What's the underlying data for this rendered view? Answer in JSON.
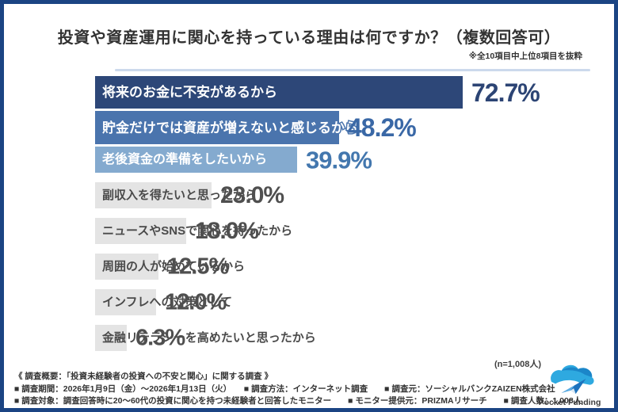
{
  "header": {
    "title": "投資や資産運用に関心を持っている理由は何ですか？（複数回答可）",
    "note": "※全10項目中上位8項目を抜粋"
  },
  "chart_data": {
    "type": "bar",
    "orientation": "horizontal",
    "unit": "%",
    "title": "投資や資産運用に関心を持っている理由は何ですか？（複数回答可）",
    "xlim": [
      0,
      100
    ],
    "grid": false,
    "legend": "none",
    "categories": [
      "将来のお金に不安があるから",
      "貯金だけでは資産が増えないと感じるから",
      "老後資金の準備をしたいから",
      "副収入を得たいと思ったから",
      "ニュースやSNSで関心を持ったから",
      "周囲の人が始めているから",
      "インフレへの対策として",
      "金融リテラシーを高めたいと思ったから"
    ],
    "values": [
      72.7,
      48.2,
      39.9,
      23.0,
      18.0,
      12.5,
      12.0,
      6.3
    ],
    "items": [
      {
        "label": "将来のお金に不安があるから",
        "value": 72.7,
        "display": "72.7%",
        "style": "navy"
      },
      {
        "label": "貯金だけでは資産が増えないと感じるから",
        "value": 48.2,
        "display": "48.2%",
        "style": "blue"
      },
      {
        "label": "老後資金の準備をしたいから",
        "value": 39.9,
        "display": "39.9%",
        "style": "lightblue"
      },
      {
        "label": "副収入を得たいと思ったから",
        "value": 23.0,
        "display": "23.0%",
        "style": "gray"
      },
      {
        "label": "ニュースやSNSで関心を持ったから",
        "value": 18.0,
        "display": "18.0%",
        "style": "gray"
      },
      {
        "label": "周囲の人が始めているから",
        "value": 12.5,
        "display": "12.5%",
        "style": "gray"
      },
      {
        "label": "インフレへの対策として",
        "value": 12.0,
        "display": "12.0%",
        "style": "gray"
      },
      {
        "label": "金融リテラシーを高めたいと思ったから",
        "value": 6.3,
        "display": "6.3%",
        "style": "gray"
      }
    ],
    "sample_note": "(n=1,008人)"
  },
  "colors": {
    "frame_border": "#1b4483",
    "bar_navy": "#2d4778",
    "bar_blue": "#4a74ad",
    "bar_lightblue": "#84aacf",
    "bar_gray": "#e4e4e4",
    "pct_navy": "#2c4474",
    "pct_blue": "#3a68a6",
    "pct_lightblue": "#4377ae",
    "pct_gray": "#4f4f4f"
  },
  "footer": {
    "line1": "《 調査概要：「投資未経験者の投資への不安と関心」に関する調査 》",
    "line2": "■ 調査期間：2026年1月9日（金）～2026年1月13日（火）　　■ 調査方法：インターネット調査　　■ 調査元：ソーシャルバンクZAIZEN株式会社",
    "line3": "■ 調査対象：調査回答時に20～60代の投資に関心を持つ未経験者と回答したモニター　　■ モニター提供元：PRIZMAリサーチ　　■ 調査人数：1,008人",
    "logo_text": "Pocket Funding"
  }
}
